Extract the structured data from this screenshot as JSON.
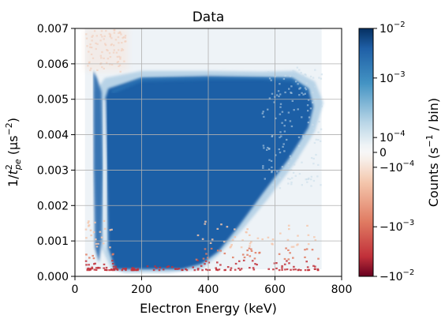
{
  "chart_data": {
    "type": "heatmap",
    "title": "Data",
    "xlabel": "Electron Energy (keV)",
    "ylabel_prefix": "1/",
    "ylabel_t": "t",
    "ylabel_sup": "2",
    "ylabel_sub": "pe",
    "ylabel_unit_open": "  (μs",
    "ylabel_unit_sup": "−2",
    "ylabel_unit_close": ")",
    "xlim": [
      0,
      800
    ],
    "ylim": [
      0,
      0.007
    ],
    "x_ticks": [
      {
        "value": 0,
        "label": "0"
      },
      {
        "value": 200,
        "label": "200"
      },
      {
        "value": 400,
        "label": "400"
      },
      {
        "value": 600,
        "label": "600"
      },
      {
        "value": 800,
        "label": "800"
      }
    ],
    "y_ticks": [
      {
        "value": 0.0,
        "label": "0.000"
      },
      {
        "value": 0.001,
        "label": "0.001"
      },
      {
        "value": 0.002,
        "label": "0.002"
      },
      {
        "value": 0.003,
        "label": "0.003"
      },
      {
        "value": 0.004,
        "label": "0.004"
      },
      {
        "value": 0.005,
        "label": "0.005"
      },
      {
        "value": 0.006,
        "label": "0.006"
      },
      {
        "value": 0.007,
        "label": "0.007"
      }
    ],
    "grid": true,
    "colormap": "RdBu (symmetric log)",
    "colorbar": {
      "label": "Counts (s",
      "label_sup": "−1",
      "label_end": " / bin)",
      "range": [
        -0.01,
        0.01
      ],
      "ticks": [
        {
          "value": 0.01,
          "base": "10",
          "exp": "−2"
        },
        {
          "value": 0.001,
          "base": "10",
          "exp": "−3"
        },
        {
          "value": 0.0001,
          "base": "10",
          "exp": "−4"
        },
        {
          "value": 0,
          "base": "0",
          "exp": ""
        },
        {
          "value": -0.0001,
          "base": "−10",
          "exp": "−4"
        },
        {
          "value": -0.001,
          "base": "−10",
          "exp": "−3"
        },
        {
          "value": -0.01,
          "base": "−10",
          "exp": "−2"
        }
      ]
    },
    "colors": {
      "high_pos": "#1f5fa6",
      "mid_pos": "#3f8fc6",
      "low_pos": "#dfeaf2",
      "zero": "#f6f6f6",
      "low_neg": "#f6d8c6",
      "mid_neg": "#e27b66",
      "high_neg": "#b2182b"
    },
    "features": {
      "data_x_range": [
        30,
        740
      ],
      "main_lobe_bottom_y": 0.0002,
      "main_lobe_top_y": 0.0057,
      "vertical_streak_x": [
        75,
        95
      ]
    }
  }
}
